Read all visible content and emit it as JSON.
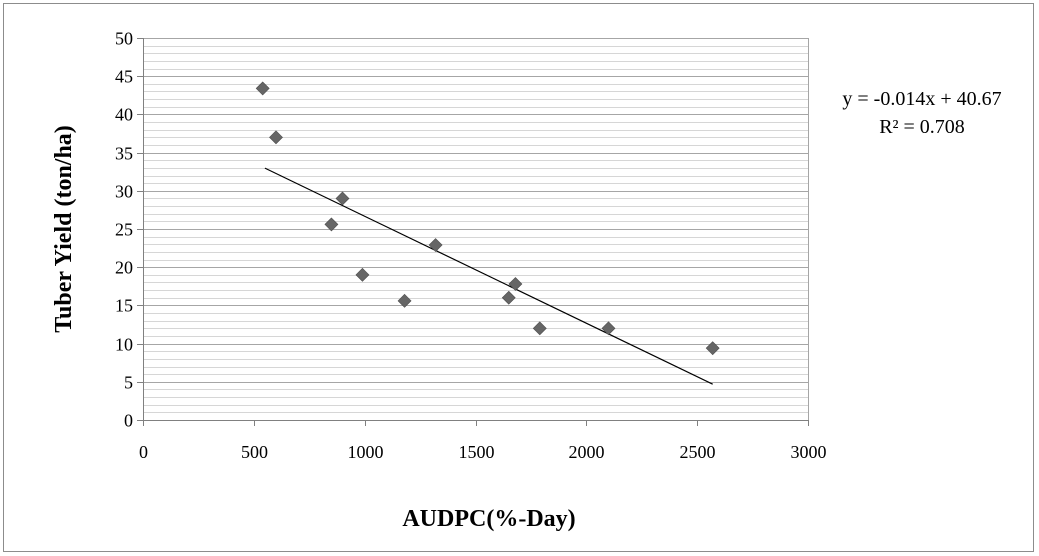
{
  "chart_data": {
    "type": "scatter",
    "title": "",
    "xlabel": "AUDPC(%-Day)",
    "ylabel": "Tuber Yield (ton/ha)",
    "xlim": [
      0,
      3000
    ],
    "ylim": [
      0,
      50
    ],
    "x_ticks": [
      0,
      500,
      1000,
      1500,
      2000,
      2500,
      3000
    ],
    "y_ticks": [
      0,
      5,
      10,
      15,
      20,
      25,
      30,
      35,
      40,
      45,
      50
    ],
    "x_tick_labels": [
      "0",
      "500",
      "1000",
      "1500",
      "2000",
      "2500",
      "3000"
    ],
    "y_tick_labels": [
      "0",
      "5",
      "10",
      "15",
      "20",
      "25",
      "30",
      "35",
      "40",
      "45",
      "50"
    ],
    "grid": {
      "horizontal": true,
      "vertical": false,
      "minor_horizontal": true
    },
    "legend": "none",
    "series": [
      {
        "marker": "diamond",
        "color": "#666666",
        "points": [
          {
            "x": 540,
            "y": 43.4
          },
          {
            "x": 600,
            "y": 37.0
          },
          {
            "x": 850,
            "y": 25.6
          },
          {
            "x": 900,
            "y": 29.0
          },
          {
            "x": 990,
            "y": 19.0
          },
          {
            "x": 1180,
            "y": 15.6
          },
          {
            "x": 1320,
            "y": 22.9
          },
          {
            "x": 1650,
            "y": 16.0
          },
          {
            "x": 1680,
            "y": 17.8
          },
          {
            "x": 1790,
            "y": 12.0
          },
          {
            "x": 2100,
            "y": 12.0
          },
          {
            "x": 2570,
            "y": 9.4
          }
        ]
      }
    ],
    "trendline": {
      "type": "linear",
      "slope": -0.014,
      "intercept": 40.67,
      "x_range": [
        550,
        2570
      ],
      "color": "#000000"
    },
    "annotations": {
      "equation": "y = -0.014x + 40.67",
      "r_squared": "R² = 0.708"
    },
    "colors": {
      "gridline": "#a6a6a6",
      "axis": "#808080",
      "marker": "#666666",
      "border": "#8c8c8c"
    }
  }
}
